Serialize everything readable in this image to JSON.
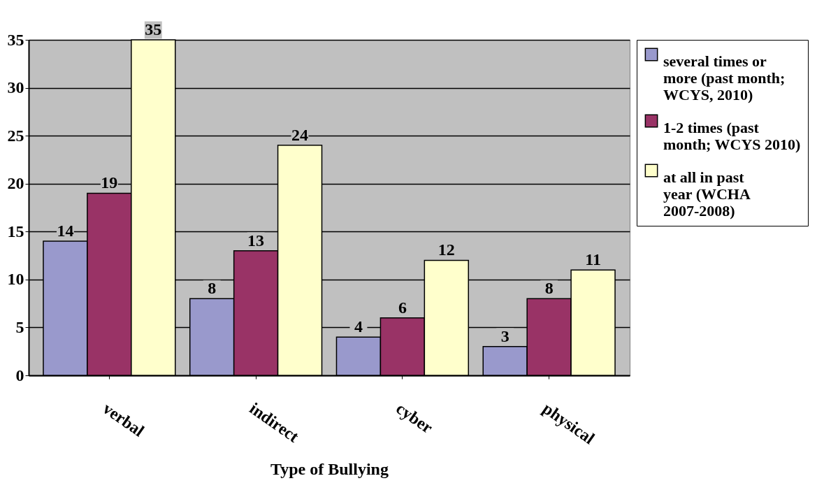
{
  "chart_data": {
    "type": "bar",
    "xlabel": "Type of Bullying",
    "categories": [
      "verbal",
      "indirect",
      "cyber",
      "physical"
    ],
    "series": [
      {
        "name": "several times or more (past month; WCYS, 2010)",
        "color": "#9999cc",
        "values": [
          14,
          8,
          4,
          3
        ]
      },
      {
        "name": "1-2  times (past month; WCYS 2010)",
        "color": "#993366",
        "values": [
          19,
          13,
          6,
          8
        ]
      },
      {
        "name": "at all in past year (WCHA 2007-2008)",
        "color": "#ffffcc",
        "values": [
          35,
          24,
          12,
          11
        ]
      }
    ],
    "ylim": [
      0,
      35
    ],
    "yticks": [
      0,
      5,
      10,
      15,
      20,
      25,
      30,
      35
    ],
    "grid": "y",
    "legend": "top right",
    "data_labels": true
  }
}
